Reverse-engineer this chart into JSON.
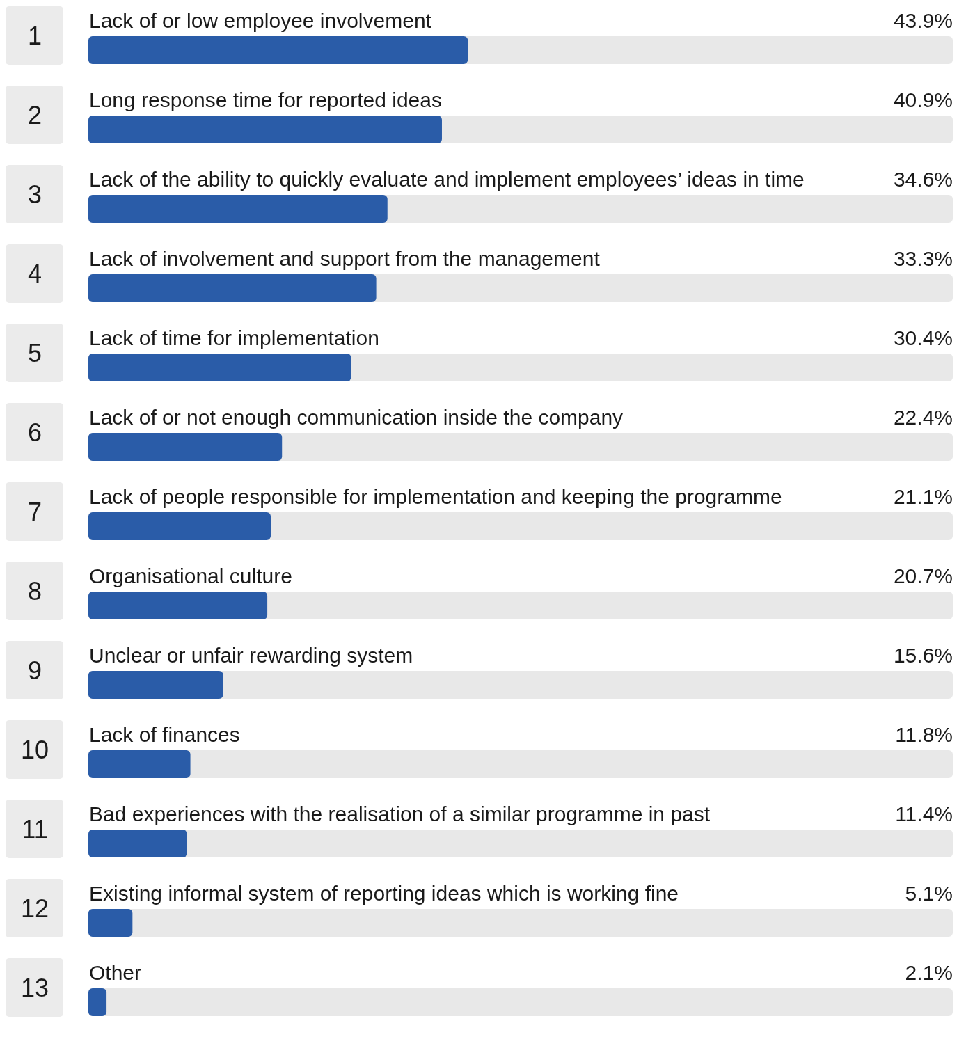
{
  "chart_data": {
    "type": "bar",
    "orientation": "horizontal",
    "categories": [
      "Lack of or low employee involvement",
      "Long response time for reported ideas",
      "Lack of the ability to quickly evaluate and implement employees’ ideas in time",
      "Lack of involvement and support from the management",
      "Lack of time for implementation",
      "Lack of or not enough communication inside the company",
      "Lack of people responsible for implementation and keeping the programme",
      "Organisational culture",
      "Unclear or unfair rewarding system",
      "Lack of finances",
      "Bad experiences with the realisation of a similar programme in past",
      "Existing informal system of reporting ideas which is working fine",
      "Other"
    ],
    "values": [
      43.9,
      40.9,
      34.6,
      33.3,
      30.4,
      22.4,
      21.1,
      20.7,
      15.6,
      11.8,
      11.4,
      5.1,
      2.1
    ],
    "value_labels": [
      "43.9%",
      "40.9%",
      "34.6%",
      "33.3%",
      "30.4%",
      "22.4%",
      "21.1%",
      "20.7%",
      "15.6%",
      "11.8%",
      "11.4%",
      "5.1%",
      "2.1%"
    ],
    "color": "#2a5ca8",
    "xlim": [
      0,
      100
    ],
    "annotations": [
      "1",
      "2",
      "3",
      "4",
      "5",
      "6",
      "7",
      "8",
      "9",
      "10",
      "11",
      "12",
      "13"
    ]
  }
}
